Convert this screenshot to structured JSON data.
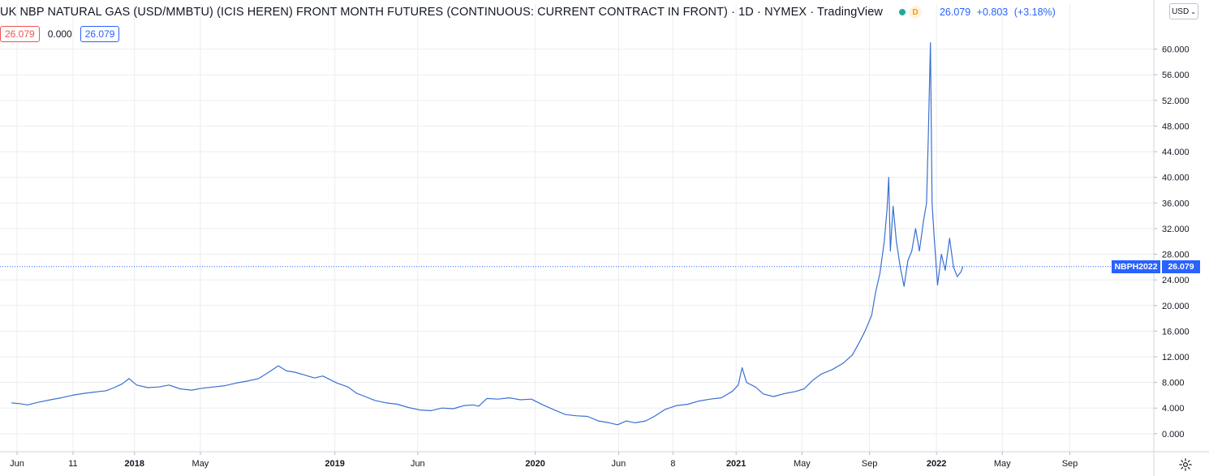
{
  "header": {
    "title": "UK NBP NATURAL GAS (USD/MMBTU) (ICIS HEREN) FRONT MONTH FUTURES (CONTINUOUS: CURRENT CONTRACT IN FRONT) · 1D · NYMEX · TradingView",
    "status_letter": "D",
    "last_price": "26.079",
    "change": "+0.803",
    "change_pct": "(+3.18%)"
  },
  "ohlc": {
    "value_left": "26.079",
    "value_mid": "0.000",
    "value_right": "26.079"
  },
  "currency": {
    "label": "USD",
    "chevron": "⌄"
  },
  "price_labels": {
    "symbol": "NBPH2022",
    "price": "26.079"
  },
  "colors": {
    "line": "#3a70d1",
    "accent": "#2962ff",
    "grid": "#ebedf1",
    "axis_text": "#131722",
    "down": "#ef5350",
    "status_green": "#26a69a",
    "status_orange": "#ff9800"
  },
  "chart_data": {
    "type": "line",
    "series": [
      {
        "name": "NBPH2022",
        "points": [
          [
            "2017-05-22",
            4.8
          ],
          [
            "2017-06-05",
            4.7
          ],
          [
            "2017-06-20",
            4.5
          ],
          [
            "2017-07-10",
            4.9
          ],
          [
            "2017-08-01",
            5.3
          ],
          [
            "2017-08-20",
            5.6
          ],
          [
            "2017-09-10",
            6.0
          ],
          [
            "2017-10-01",
            6.3
          ],
          [
            "2017-10-20",
            6.5
          ],
          [
            "2017-11-10",
            6.7
          ],
          [
            "2017-11-25",
            7.2
          ],
          [
            "2017-12-10",
            7.8
          ],
          [
            "2017-12-22",
            8.6
          ],
          [
            "2018-01-05",
            7.6
          ],
          [
            "2018-01-25",
            7.2
          ],
          [
            "2018-02-15",
            7.3
          ],
          [
            "2018-03-05",
            7.6
          ],
          [
            "2018-03-25",
            7.0
          ],
          [
            "2018-04-15",
            6.8
          ],
          [
            "2018-05-05",
            7.1
          ],
          [
            "2018-05-25",
            7.3
          ],
          [
            "2018-06-15",
            7.5
          ],
          [
            "2018-07-05",
            7.9
          ],
          [
            "2018-07-25",
            8.2
          ],
          [
            "2018-08-15",
            8.6
          ],
          [
            "2018-09-01",
            9.5
          ],
          [
            "2018-09-20",
            10.6
          ],
          [
            "2018-10-05",
            9.8
          ],
          [
            "2018-10-20",
            9.6
          ],
          [
            "2018-11-05",
            9.2
          ],
          [
            "2018-11-25",
            8.7
          ],
          [
            "2018-12-10",
            9.0
          ],
          [
            "2019-01-05",
            7.9
          ],
          [
            "2019-01-25",
            7.3
          ],
          [
            "2019-02-10",
            6.3
          ],
          [
            "2019-02-25",
            5.8
          ],
          [
            "2019-03-15",
            5.2
          ],
          [
            "2019-04-05",
            4.8
          ],
          [
            "2019-04-25",
            4.6
          ],
          [
            "2019-05-15",
            4.1
          ],
          [
            "2019-06-05",
            3.7
          ],
          [
            "2019-06-25",
            3.6
          ],
          [
            "2019-07-15",
            4.0
          ],
          [
            "2019-08-05",
            3.9
          ],
          [
            "2019-08-25",
            4.4
          ],
          [
            "2019-09-10",
            4.5
          ],
          [
            "2019-09-20",
            4.3
          ],
          [
            "2019-10-05",
            5.5
          ],
          [
            "2019-10-25",
            5.4
          ],
          [
            "2019-11-15",
            5.6
          ],
          [
            "2019-12-05",
            5.3
          ],
          [
            "2019-12-25",
            5.4
          ],
          [
            "2020-01-15",
            4.5
          ],
          [
            "2020-02-05",
            3.7
          ],
          [
            "2020-02-25",
            3.0
          ],
          [
            "2020-03-15",
            2.8
          ],
          [
            "2020-04-05",
            2.7
          ],
          [
            "2020-04-25",
            2.0
          ],
          [
            "2020-05-15",
            1.7
          ],
          [
            "2020-05-30",
            1.4
          ],
          [
            "2020-06-15",
            2.0
          ],
          [
            "2020-07-01",
            1.7
          ],
          [
            "2020-07-20",
            2.0
          ],
          [
            "2020-08-05",
            2.7
          ],
          [
            "2020-08-25",
            3.8
          ],
          [
            "2020-09-15",
            4.4
          ],
          [
            "2020-10-05",
            4.6
          ],
          [
            "2020-10-25",
            5.1
          ],
          [
            "2020-11-15",
            5.4
          ],
          [
            "2020-12-05",
            5.6
          ],
          [
            "2020-12-25",
            6.6
          ],
          [
            "2021-01-05",
            7.6
          ],
          [
            "2021-01-12",
            10.3
          ],
          [
            "2021-01-20",
            8.0
          ],
          [
            "2021-02-05",
            7.3
          ],
          [
            "2021-02-20",
            6.2
          ],
          [
            "2021-03-10",
            5.8
          ],
          [
            "2021-04-01",
            6.3
          ],
          [
            "2021-04-20",
            6.6
          ],
          [
            "2021-05-05",
            7.0
          ],
          [
            "2021-05-20",
            8.3
          ],
          [
            "2021-06-05",
            9.3
          ],
          [
            "2021-06-25",
            10.0
          ],
          [
            "2021-07-15",
            11.0
          ],
          [
            "2021-08-01",
            12.3
          ],
          [
            "2021-08-15",
            14.5
          ],
          [
            "2021-08-25",
            16.2
          ],
          [
            "2021-09-05",
            18.5
          ],
          [
            "2021-09-12",
            22.0
          ],
          [
            "2021-09-20",
            25.0
          ],
          [
            "2021-09-28",
            30.0
          ],
          [
            "2021-10-03",
            35.0
          ],
          [
            "2021-10-06",
            40.0
          ],
          [
            "2021-10-09",
            28.5
          ],
          [
            "2021-10-14",
            35.5
          ],
          [
            "2021-10-20",
            30.0
          ],
          [
            "2021-10-27",
            26.0
          ],
          [
            "2021-11-03",
            23.0
          ],
          [
            "2021-11-10",
            27.0
          ],
          [
            "2021-11-17",
            28.5
          ],
          [
            "2021-11-24",
            32.0
          ],
          [
            "2021-12-01",
            28.5
          ],
          [
            "2021-12-08",
            33.0
          ],
          [
            "2021-12-14",
            36.0
          ],
          [
            "2021-12-17",
            46.0
          ],
          [
            "2021-12-21",
            61.0
          ],
          [
            "2021-12-24",
            36.0
          ],
          [
            "2021-12-28",
            30.5
          ],
          [
            "2022-01-03",
            23.2
          ],
          [
            "2022-01-10",
            28.0
          ],
          [
            "2022-01-17",
            25.5
          ],
          [
            "2022-01-25",
            30.5
          ],
          [
            "2022-02-01",
            26.0
          ],
          [
            "2022-02-08",
            24.5
          ],
          [
            "2022-02-15",
            25.3
          ],
          [
            "2022-02-18",
            26.079
          ]
        ]
      }
    ],
    "y_ticks": [
      "0.000",
      "4.000",
      "8.000",
      "12.000",
      "16.000",
      "20.000",
      "24.000",
      "28.000",
      "32.000",
      "36.000",
      "40.000",
      "44.000",
      "48.000",
      "52.000",
      "56.000",
      "60.000"
    ],
    "y_tick_values": [
      0,
      4,
      8,
      12,
      16,
      20,
      24,
      28,
      32,
      36,
      40,
      44,
      48,
      52,
      56,
      60
    ],
    "x_ticks": [
      {
        "date": "2017-06-01",
        "label": "Jun"
      },
      {
        "date": "2017-09-11",
        "label": "11"
      },
      {
        "date": "2018-01-01",
        "label": "2018"
      },
      {
        "date": "2018-05-01",
        "label": "May"
      },
      {
        "date": "2019-01-01",
        "label": "2019"
      },
      {
        "date": "2019-06-01",
        "label": "Jun"
      },
      {
        "date": "2020-01-01",
        "label": "2020"
      },
      {
        "date": "2020-06-01",
        "label": "Jun"
      },
      {
        "date": "2020-09-08",
        "label": "8"
      },
      {
        "date": "2021-01-01",
        "label": "2021"
      },
      {
        "date": "2021-05-01",
        "label": "May"
      },
      {
        "date": "2021-09-01",
        "label": "Sep"
      },
      {
        "date": "2022-01-01",
        "label": "2022"
      },
      {
        "date": "2022-05-01",
        "label": "May"
      },
      {
        "date": "2022-09-01",
        "label": "Sep"
      }
    ],
    "x_range": [
      "2017-05-01",
      "2023-02-01"
    ],
    "ylim": [
      -2.8,
      64.5
    ],
    "last_value": 26.079,
    "grid": true,
    "legend": "top-left"
  }
}
